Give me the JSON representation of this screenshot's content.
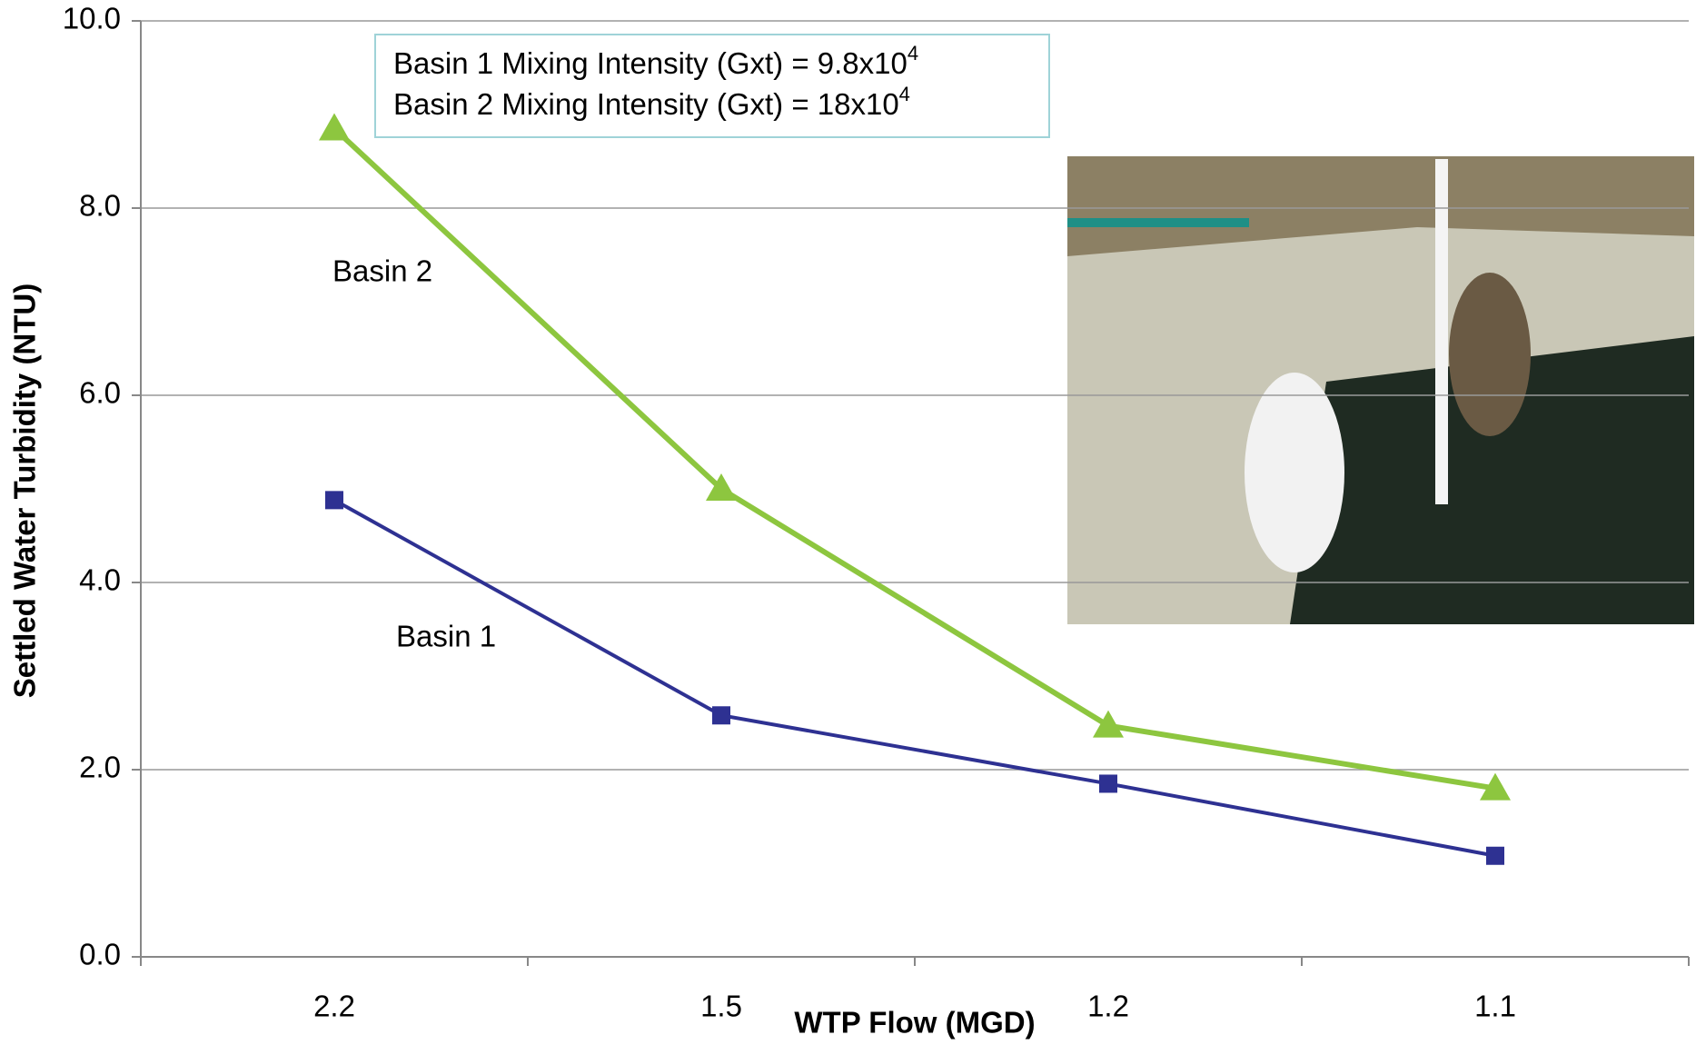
{
  "chart_data": {
    "type": "line",
    "x_label": "WTP Flow (MGD)",
    "y_label": "Settled Water Turbidity (NTU)",
    "categories": [
      "2.2",
      "1.5",
      "1.2",
      "1.1"
    ],
    "series": [
      {
        "name": "Basin 1",
        "color": "#2e3192",
        "marker": "square",
        "values": [
          4.88,
          2.58,
          1.85,
          1.08
        ]
      },
      {
        "name": "Basin 2",
        "color": "#8dc63f",
        "marker": "triangle",
        "values": [
          8.85,
          5.0,
          2.47,
          1.8
        ]
      }
    ],
    "ylim": [
      0,
      10
    ],
    "yticks": [
      {
        "value": 0,
        "label": "0.0"
      },
      {
        "value": 2,
        "label": "2.0"
      },
      {
        "value": 4,
        "label": "4.0"
      },
      {
        "value": 6,
        "label": "6.0"
      },
      {
        "value": 8,
        "label": "8.0"
      },
      {
        "value": 10,
        "label": "10.0"
      }
    ],
    "grid": true,
    "annotations": [
      {
        "text": "Basin 1 Mixing Intensity (Gxt) = 9.8x10",
        "sup": "4"
      },
      {
        "text": "Basin 2 Mixing Intensity (Gxt) = 18x10",
        "sup": "4"
      }
    ]
  }
}
